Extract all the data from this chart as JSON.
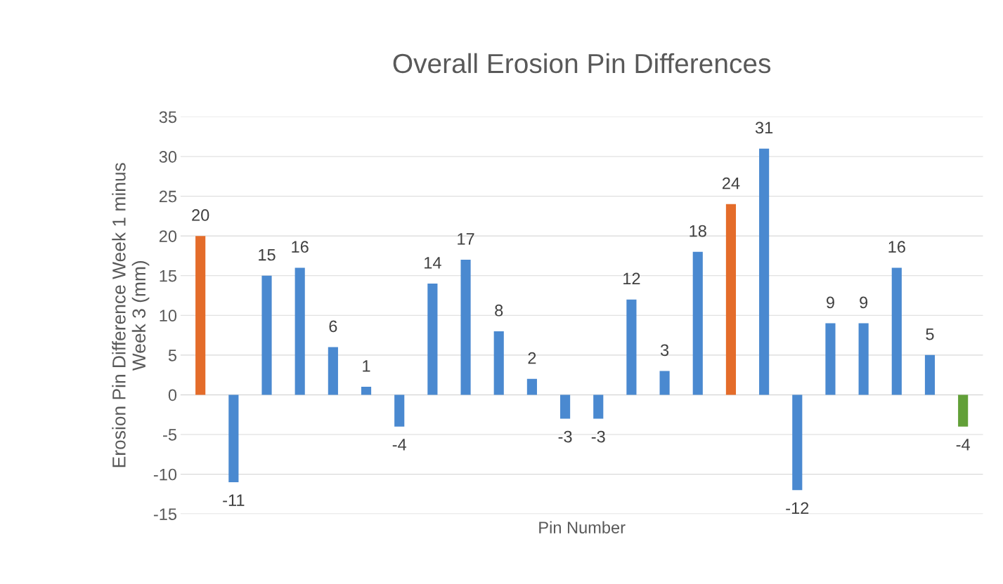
{
  "chart_data": {
    "type": "bar",
    "title": "Overall Erosion Pin Differences",
    "xlabel": "Pin Number",
    "ylabel": "Erosion Pin Difference Week 1 minus\nWeek 3 (mm)",
    "categories": [
      null,
      null,
      null,
      null,
      null,
      null,
      null,
      null,
      null,
      null,
      null,
      null,
      null,
      null,
      null,
      null,
      null,
      null,
      null,
      null,
      null,
      null,
      null,
      null
    ],
    "values": [
      20,
      -11,
      15,
      16,
      6,
      1,
      -4,
      14,
      17,
      8,
      2,
      -3,
      -3,
      12,
      3,
      18,
      24,
      31,
      -12,
      9,
      9,
      16,
      5,
      -4
    ],
    "colors": [
      "#e46c2a",
      "#4a89d0",
      "#4a89d0",
      "#4a89d0",
      "#4a89d0",
      "#4a89d0",
      "#4a89d0",
      "#4a89d0",
      "#4a89d0",
      "#4a89d0",
      "#4a89d0",
      "#4a89d0",
      "#4a89d0",
      "#4a89d0",
      "#4a89d0",
      "#4a89d0",
      "#e46c2a",
      "#4a89d0",
      "#4a89d0",
      "#4a89d0",
      "#4a89d0",
      "#4a89d0",
      "#4a89d0",
      "#62a038"
    ],
    "ylim": [
      -15,
      35
    ],
    "yticks": [
      -15,
      -10,
      -5,
      0,
      5,
      10,
      15,
      20,
      25,
      30,
      35
    ],
    "grid": "y",
    "data_labels": true
  }
}
